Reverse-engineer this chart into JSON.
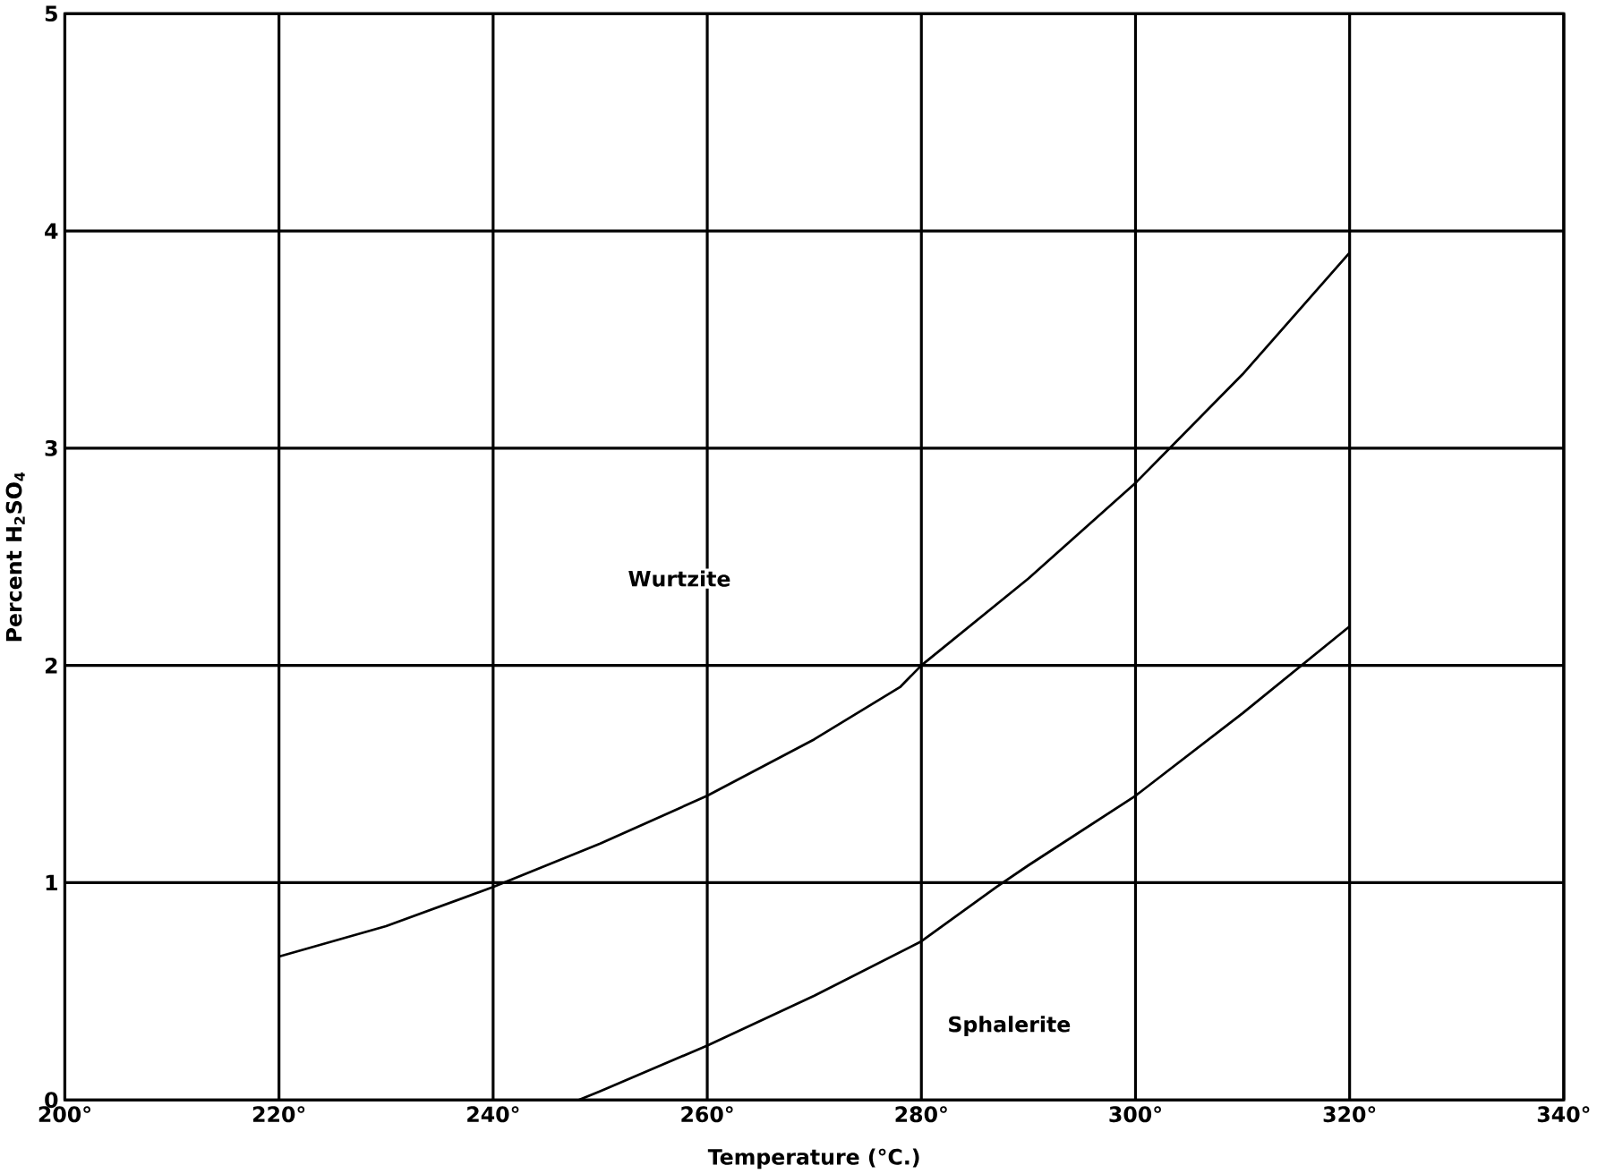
{
  "chart_data": {
    "type": "line",
    "xlabel": "Temperature (°C.)",
    "ylabel": "Percent H$_{2}$SO$_{4}$",
    "xlim": [
      200,
      340
    ],
    "ylim": [
      0,
      5
    ],
    "xticks": [
      {
        "value": 200,
        "label": "200°"
      },
      {
        "value": 220,
        "label": "220°"
      },
      {
        "value": 240,
        "label": "240°"
      },
      {
        "value": 260,
        "label": "260°"
      },
      {
        "value": 280,
        "label": "280°"
      },
      {
        "value": 300,
        "label": "300°"
      },
      {
        "value": 320,
        "label": "320°"
      },
      {
        "value": 340,
        "label": "340°"
      }
    ],
    "yticks": [
      0,
      1,
      2,
      3,
      4,
      5
    ],
    "grid": true,
    "marker": "none",
    "line_style": "solid",
    "series": [
      {
        "color": "#000000",
        "x": [
          220,
          230,
          240,
          250,
          260,
          270,
          278,
          280,
          290,
          300,
          310,
          320
        ],
        "values": [
          0.66,
          0.8,
          0.98,
          1.18,
          1.4,
          1.66,
          1.9,
          2.0,
          2.4,
          2.84,
          3.34,
          3.9
        ]
      },
      {
        "color": "#000000",
        "x": [
          248,
          250,
          260,
          270,
          280,
          287,
          290,
          300,
          310,
          320
        ],
        "values": [
          0,
          0.04,
          0.25,
          0.48,
          0.73,
          0.98,
          1.08,
          1.4,
          1.78,
          2.18
        ]
      }
    ],
    "annotations": [
      "Wurtzite",
      "Sphalerite"
    ]
  }
}
